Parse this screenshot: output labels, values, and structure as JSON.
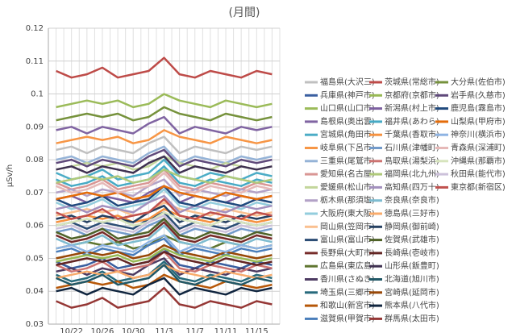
{
  "chart_data": {
    "type": "line",
    "title": "(月間)",
    "y_label": "μSv/h",
    "categories": [
      null,
      "10/22",
      null,
      "10/26",
      null,
      "10/30",
      null,
      "11/3",
      null,
      "11/7",
      null,
      "11/11",
      null,
      "11/15",
      null
    ],
    "ylim": [
      0.03,
      0.12
    ],
    "yticks": [
      0.03,
      0.04,
      0.05,
      0.06,
      0.07,
      0.08,
      0.09,
      0.1,
      0.11,
      0.12
    ],
    "grid": true,
    "series": [
      {
        "name": "福島県(大沢三)",
        "color": "#c0c0c0",
        "values": [
          0.083,
          0.084,
          0.082,
          0.084,
          0.083,
          0.082,
          0.085,
          0.087,
          0.082,
          0.084,
          0.083,
          0.082,
          0.084,
          0.083,
          0.084
        ]
      },
      {
        "name": "兵庫県(神戸市)",
        "color": "#3a5fa0",
        "values": [
          0.049,
          0.047,
          0.048,
          0.05,
          0.047,
          0.048,
          0.049,
          0.053,
          0.048,
          0.047,
          0.049,
          0.048,
          0.047,
          0.049,
          0.048
        ]
      },
      {
        "name": "山口県(山口市)",
        "color": "#9bbb59",
        "values": [
          0.096,
          0.097,
          0.098,
          0.097,
          0.098,
          0.096,
          0.097,
          0.1,
          0.098,
          0.097,
          0.096,
          0.098,
          0.097,
          0.096,
          0.097
        ]
      },
      {
        "name": "島根県(奥出雲)",
        "color": "#8064a2",
        "values": [
          0.089,
          0.09,
          0.088,
          0.09,
          0.089,
          0.088,
          0.091,
          0.093,
          0.088,
          0.09,
          0.089,
          0.088,
          0.09,
          0.089,
          0.09
        ]
      },
      {
        "name": "宮城県(角田市)",
        "color": "#4bacc6",
        "values": [
          0.076,
          0.074,
          0.075,
          0.077,
          0.074,
          0.075,
          0.076,
          0.08,
          0.075,
          0.074,
          0.076,
          0.075,
          0.074,
          0.076,
          0.075
        ]
      },
      {
        "name": "岐阜県(下呂市)",
        "color": "#f79646",
        "values": [
          0.085,
          0.086,
          0.087,
          0.086,
          0.087,
          0.085,
          0.086,
          0.089,
          0.087,
          0.086,
          0.085,
          0.087,
          0.086,
          0.085,
          0.086
        ]
      },
      {
        "name": "三重県(尾鷲市)",
        "color": "#95b3d7",
        "values": [
          0.08,
          0.081,
          0.079,
          0.081,
          0.08,
          0.079,
          0.082,
          0.084,
          0.079,
          0.081,
          0.08,
          0.079,
          0.081,
          0.08,
          0.081
        ]
      },
      {
        "name": "愛知県(名古屋)",
        "color": "#d99694",
        "values": [
          0.073,
          0.071,
          0.072,
          0.074,
          0.071,
          0.072,
          0.073,
          0.077,
          0.072,
          0.071,
          0.073,
          0.072,
          0.071,
          0.073,
          0.072
        ]
      },
      {
        "name": "愛媛県(松山市)",
        "color": "#c3d69b",
        "values": [
          0.077,
          0.078,
          0.079,
          0.078,
          0.079,
          0.077,
          0.078,
          0.081,
          0.079,
          0.078,
          0.077,
          0.079,
          0.078,
          0.077,
          0.078
        ]
      },
      {
        "name": "栃木県(那須塩)",
        "color": "#b3a2c7",
        "values": [
          0.07,
          0.071,
          0.069,
          0.071,
          0.07,
          0.069,
          0.072,
          0.074,
          0.069,
          0.071,
          0.07,
          0.069,
          0.071,
          0.07,
          0.071
        ]
      },
      {
        "name": "大阪府(東大阪)",
        "color": "#93cddd",
        "values": [
          0.067,
          0.065,
          0.066,
          0.068,
          0.065,
          0.066,
          0.067,
          0.071,
          0.066,
          0.065,
          0.067,
          0.066,
          0.065,
          0.067,
          0.066
        ]
      },
      {
        "name": "岡山県(笠岡市)",
        "color": "#fac090",
        "values": [
          0.063,
          0.064,
          0.065,
          0.064,
          0.065,
          0.063,
          0.064,
          0.067,
          0.065,
          0.064,
          0.063,
          0.065,
          0.064,
          0.063,
          0.064
        ]
      },
      {
        "name": "富山県(富山市)",
        "color": "#2c4d75",
        "values": [
          0.06,
          0.061,
          0.059,
          0.061,
          0.06,
          0.059,
          0.062,
          0.064,
          0.059,
          0.061,
          0.06,
          0.059,
          0.061,
          0.06,
          0.061
        ]
      },
      {
        "name": "長野県(大町市)",
        "color": "#772c2a",
        "values": [
          0.057,
          0.055,
          0.056,
          0.058,
          0.055,
          0.056,
          0.057,
          0.061,
          0.056,
          0.055,
          0.057,
          0.056,
          0.055,
          0.057,
          0.056
        ]
      },
      {
        "name": "広島県(東広島)",
        "color": "#5f7530",
        "values": [
          0.053,
          0.054,
          0.055,
          0.054,
          0.055,
          0.053,
          0.054,
          0.057,
          0.055,
          0.054,
          0.053,
          0.055,
          0.054,
          0.053,
          0.054
        ]
      },
      {
        "name": "香川県(さぬき)",
        "color": "#4d3b62",
        "values": [
          0.046,
          0.047,
          0.045,
          0.047,
          0.046,
          0.045,
          0.048,
          0.05,
          0.045,
          0.047,
          0.046,
          0.045,
          0.047,
          0.046,
          0.047
        ]
      },
      {
        "name": "埼玉県(三郷市)",
        "color": "#276a7c",
        "values": [
          0.045,
          0.043,
          0.044,
          0.046,
          0.043,
          0.044,
          0.045,
          0.049,
          0.044,
          0.043,
          0.045,
          0.044,
          0.043,
          0.045,
          0.044
        ]
      },
      {
        "name": "和歌山(新宮市)",
        "color": "#b65708",
        "values": [
          0.041,
          0.042,
          0.043,
          0.042,
          0.043,
          0.041,
          0.042,
          0.045,
          0.043,
          0.042,
          0.041,
          0.043,
          0.042,
          0.041,
          0.042
        ]
      },
      {
        "name": "滋賀県(甲賀市)",
        "color": "#4a7ebb",
        "values": [
          0.052,
          0.053,
          0.051,
          0.053,
          0.052,
          0.051,
          0.054,
          0.056,
          0.051,
          0.053,
          0.052,
          0.051,
          0.053,
          0.052,
          0.053
        ]
      },
      {
        "name": "茨城県(常総市)",
        "color": "#be4b48",
        "values": [
          0.107,
          0.105,
          0.106,
          0.108,
          0.105,
          0.106,
          0.107,
          0.111,
          0.106,
          0.105,
          0.107,
          0.106,
          0.105,
          0.107,
          0.106
        ]
      },
      {
        "name": "京都府(京都市)",
        "color": "#98b954",
        "values": [
          0.049,
          0.05,
          0.051,
          0.05,
          0.051,
          0.049,
          0.05,
          0.053,
          0.051,
          0.05,
          0.049,
          0.051,
          0.05,
          0.049,
          0.05
        ]
      },
      {
        "name": "新潟県(村上市)",
        "color": "#7d60a0",
        "values": [
          0.068,
          0.069,
          0.067,
          0.069,
          0.068,
          0.067,
          0.07,
          0.072,
          0.067,
          0.069,
          0.068,
          0.067,
          0.069,
          0.068,
          0.069
        ]
      },
      {
        "name": "福井県(あわら)",
        "color": "#46aac5",
        "values": [
          0.074,
          0.072,
          0.073,
          0.075,
          0.072,
          0.073,
          0.074,
          0.078,
          0.073,
          0.072,
          0.074,
          0.073,
          0.072,
          0.074,
          0.073
        ]
      },
      {
        "name": "千葉県(香取市)",
        "color": "#f69240",
        "values": [
          0.061,
          0.062,
          0.063,
          0.062,
          0.063,
          0.061,
          0.062,
          0.065,
          0.063,
          0.062,
          0.061,
          0.063,
          0.062,
          0.061,
          0.062
        ]
      },
      {
        "name": "石川県(津幡町)",
        "color": "#729aca",
        "values": [
          0.058,
          0.059,
          0.057,
          0.059,
          0.058,
          0.057,
          0.06,
          0.062,
          0.057,
          0.059,
          0.058,
          0.057,
          0.059,
          0.058,
          0.059
        ]
      },
      {
        "name": "鳥取県(湯梨浜)",
        "color": "#cd7371",
        "values": [
          0.048,
          0.046,
          0.047,
          0.049,
          0.046,
          0.047,
          0.048,
          0.052,
          0.047,
          0.046,
          0.048,
          0.047,
          0.046,
          0.048,
          0.047
        ]
      },
      {
        "name": "福岡県(北九州)",
        "color": "#afc97a",
        "values": [
          0.073,
          0.074,
          0.075,
          0.074,
          0.075,
          0.073,
          0.074,
          0.077,
          0.075,
          0.074,
          0.073,
          0.075,
          0.074,
          0.073,
          0.074
        ]
      },
      {
        "name": "高知県(四万十)",
        "color": "#a390be",
        "values": [
          0.065,
          0.066,
          0.064,
          0.066,
          0.065,
          0.064,
          0.067,
          0.069,
          0.064,
          0.066,
          0.065,
          0.064,
          0.066,
          0.065,
          0.066
        ]
      },
      {
        "name": "奈良県(奈良市)",
        "color": "#7ebcd0",
        "values": [
          0.056,
          0.054,
          0.055,
          0.057,
          0.054,
          0.055,
          0.056,
          0.06,
          0.055,
          0.054,
          0.056,
          0.055,
          0.054,
          0.056,
          0.055
        ]
      },
      {
        "name": "徳島県(三好市)",
        "color": "#f9ab6b",
        "values": [
          0.044,
          0.045,
          0.046,
          0.045,
          0.046,
          0.044,
          0.045,
          0.048,
          0.046,
          0.045,
          0.044,
          0.046,
          0.045,
          0.044,
          0.045
        ]
      },
      {
        "name": "静岡県(御前崎)",
        "color": "#254061",
        "values": [
          0.062,
          0.063,
          0.061,
          0.063,
          0.062,
          0.061,
          0.064,
          0.066,
          0.061,
          0.063,
          0.062,
          0.061,
          0.063,
          0.062,
          0.063
        ]
      },
      {
        "name": "佐賀県(武雄市)",
        "color": "#4f6228",
        "values": [
          0.058,
          0.056,
          0.057,
          0.059,
          0.056,
          0.057,
          0.058,
          0.062,
          0.057,
          0.056,
          0.058,
          0.057,
          0.056,
          0.058,
          0.057
        ]
      },
      {
        "name": "長崎県(壱岐市)",
        "color": "#632523",
        "values": [
          0.048,
          0.049,
          0.05,
          0.049,
          0.05,
          0.048,
          0.049,
          0.052,
          0.05,
          0.049,
          0.048,
          0.05,
          0.049,
          0.048,
          0.049
        ]
      },
      {
        "name": "山形県(飯豊町)",
        "color": "#3f3151",
        "values": [
          0.077,
          0.078,
          0.076,
          0.078,
          0.077,
          0.076,
          0.079,
          0.081,
          0.076,
          0.078,
          0.077,
          0.076,
          0.078,
          0.077,
          0.078
        ]
      },
      {
        "name": "北海道(旭川市)",
        "color": "#215867",
        "values": [
          0.044,
          0.042,
          0.043,
          0.045,
          0.042,
          0.043,
          0.044,
          0.048,
          0.043,
          0.042,
          0.044,
          0.043,
          0.042,
          0.044,
          0.043
        ]
      },
      {
        "name": "宮崎県(延岡市)",
        "color": "#984807",
        "values": [
          0.05,
          0.051,
          0.052,
          0.051,
          0.052,
          0.05,
          0.051,
          0.054,
          0.052,
          0.051,
          0.05,
          0.052,
          0.051,
          0.05,
          0.051
        ]
      },
      {
        "name": "熊本県(八代市)",
        "color": "#10253f",
        "values": [
          0.04,
          0.041,
          0.039,
          0.041,
          0.04,
          0.039,
          0.042,
          0.044,
          0.039,
          0.041,
          0.04,
          0.039,
          0.041,
          0.04,
          0.041
        ]
      },
      {
        "name": "群馬県(太田市)",
        "color": "#953735",
        "values": [
          0.037,
          0.035,
          0.036,
          0.038,
          0.035,
          0.036,
          0.037,
          0.041,
          0.036,
          0.035,
          0.037,
          0.036,
          0.035,
          0.037,
          0.036
        ]
      },
      {
        "name": "大分県(佐伯市)",
        "color": "#76923c",
        "values": [
          0.092,
          0.093,
          0.094,
          0.093,
          0.094,
          0.092,
          0.093,
          0.096,
          0.094,
          0.093,
          0.092,
          0.094,
          0.093,
          0.092,
          0.093
        ]
      },
      {
        "name": "岩手県(久慈市)",
        "color": "#5f497a",
        "values": [
          0.079,
          0.08,
          0.078,
          0.08,
          0.079,
          0.078,
          0.081,
          0.083,
          0.078,
          0.08,
          0.079,
          0.078,
          0.08,
          0.079,
          0.08
        ]
      },
      {
        "name": "鹿児島(霧島市)",
        "color": "#1f497d",
        "values": [
          0.068,
          0.066,
          0.067,
          0.069,
          0.066,
          0.067,
          0.068,
          0.072,
          0.067,
          0.066,
          0.068,
          0.067,
          0.066,
          0.068,
          0.067
        ]
      },
      {
        "name": "山梨県(甲府市)",
        "color": "#e46c0a",
        "values": [
          0.068,
          0.069,
          0.07,
          0.069,
          0.07,
          0.068,
          0.069,
          0.072,
          0.07,
          0.069,
          0.068,
          0.07,
          0.069,
          0.068,
          0.069
        ]
      },
      {
        "name": "神奈川(横浜市)",
        "color": "#8eb4e3",
        "values": [
          0.053,
          0.054,
          0.052,
          0.054,
          0.053,
          0.052,
          0.055,
          0.057,
          0.052,
          0.054,
          0.053,
          0.052,
          0.054,
          0.053,
          0.054
        ]
      },
      {
        "name": "青森県(深浦町)",
        "color": "#e6b9b8",
        "values": [
          0.072,
          0.07,
          0.071,
          0.073,
          0.07,
          0.071,
          0.072,
          0.076,
          0.071,
          0.07,
          0.072,
          0.071,
          0.07,
          0.072,
          0.071
        ]
      },
      {
        "name": "沖縄県(那覇市)",
        "color": "#d7e4bd",
        "values": [
          0.06,
          0.061,
          0.062,
          0.061,
          0.062,
          0.06,
          0.061,
          0.064,
          0.062,
          0.061,
          0.06,
          0.062,
          0.061,
          0.06,
          0.061
        ]
      },
      {
        "name": "秋田県(能代市)",
        "color": "#ccc1da",
        "values": [
          0.059,
          0.06,
          0.058,
          0.06,
          0.059,
          0.058,
          0.061,
          0.063,
          0.058,
          0.06,
          0.059,
          0.058,
          0.06,
          0.059,
          0.06
        ]
      },
      {
        "name": "東京都(新宿区)",
        "color": "#c0504d",
        "values": [
          0.064,
          0.062,
          0.063,
          0.065,
          0.062,
          0.063,
          0.064,
          0.068,
          0.063,
          0.062,
          0.064,
          0.063,
          0.062,
          0.064,
          0.063
        ]
      }
    ]
  }
}
